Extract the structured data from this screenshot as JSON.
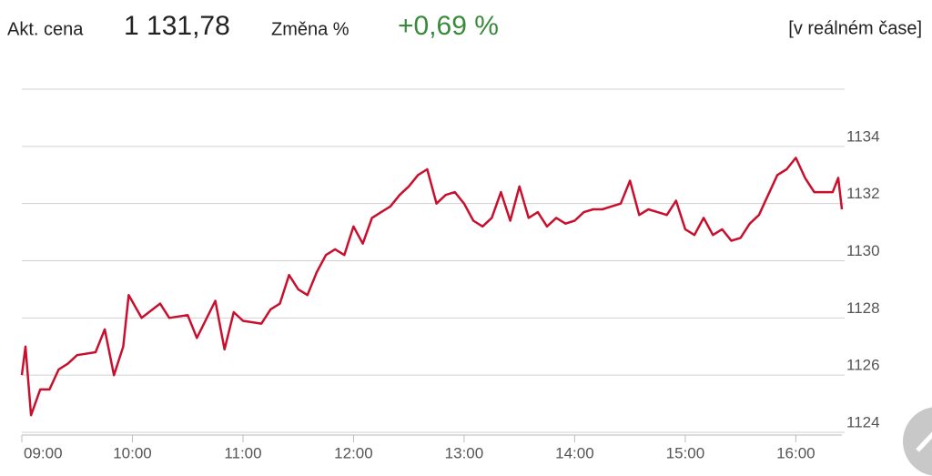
{
  "header": {
    "price_label": "Akt. cena",
    "price": "1 131,78",
    "change_label": "Změna %",
    "change": "+0,69 %",
    "realtime": "[v reálném čase]"
  },
  "chart_data": {
    "type": "line",
    "color": "#c8102e",
    "x": [
      "09:00",
      "09:02",
      "09:05",
      "09:10",
      "09:15",
      "09:20",
      "09:25",
      "09:30",
      "09:40",
      "09:45",
      "09:50",
      "09:55",
      "09:58",
      "10:05",
      "10:15",
      "10:20",
      "10:30",
      "10:35",
      "10:45",
      "10:50",
      "10:55",
      "11:00",
      "11:10",
      "11:15",
      "11:20",
      "11:25",
      "11:30",
      "11:35",
      "11:40",
      "11:45",
      "11:50",
      "11:55",
      "12:00",
      "12:05",
      "12:10",
      "12:15",
      "12:20",
      "12:25",
      "12:30",
      "12:35",
      "12:40",
      "12:45",
      "12:50",
      "12:55",
      "13:00",
      "13:05",
      "13:10",
      "13:15",
      "13:20",
      "13:25",
      "13:30",
      "13:35",
      "13:40",
      "13:45",
      "13:50",
      "13:55",
      "14:00",
      "14:05",
      "14:10",
      "14:15",
      "14:20",
      "14:25",
      "14:30",
      "14:35",
      "14:40",
      "14:45",
      "14:50",
      "14:55",
      "15:00",
      "15:05",
      "15:10",
      "15:15",
      "15:20",
      "15:25",
      "15:30",
      "15:35",
      "15:40",
      "15:45",
      "15:50",
      "15:55",
      "16:00",
      "16:05",
      "16:10",
      "16:15",
      "16:20",
      "16:23",
      "16:25"
    ],
    "values": [
      1126.0,
      1127.0,
      1124.6,
      1125.5,
      1125.5,
      1126.2,
      1126.4,
      1126.7,
      1126.8,
      1127.6,
      1126.0,
      1127.0,
      1128.8,
      1128.0,
      1128.5,
      1128.0,
      1128.1,
      1127.3,
      1128.6,
      1126.9,
      1128.2,
      1127.9,
      1127.8,
      1128.3,
      1128.5,
      1129.5,
      1129.0,
      1128.8,
      1129.6,
      1130.2,
      1130.4,
      1130.2,
      1131.2,
      1130.6,
      1131.5,
      1131.7,
      1131.9,
      1132.3,
      1132.6,
      1133.0,
      1133.2,
      1132.0,
      1132.3,
      1132.4,
      1132.0,
      1131.4,
      1131.2,
      1131.5,
      1132.4,
      1131.4,
      1132.6,
      1131.5,
      1131.7,
      1131.2,
      1131.5,
      1131.3,
      1131.4,
      1131.7,
      1131.8,
      1131.8,
      1131.9,
      1132.0,
      1132.8,
      1131.6,
      1131.8,
      1131.7,
      1131.6,
      1132.1,
      1131.1,
      1130.9,
      1131.5,
      1130.9,
      1131.1,
      1130.7,
      1130.8,
      1131.3,
      1131.6,
      1132.3,
      1133.0,
      1133.2,
      1133.6,
      1132.9,
      1132.4,
      1132.4,
      1132.4,
      1132.9,
      1131.8
    ],
    "xlim": [
      "09:00",
      "16:25"
    ],
    "xticks": [
      "09:00",
      "10:00",
      "11:00",
      "12:00",
      "13:00",
      "14:00",
      "15:00",
      "16:00"
    ],
    "ylim": [
      1124,
      1136
    ],
    "yticks": [
      1124,
      1126,
      1128,
      1130,
      1132,
      1134
    ],
    "grid": true
  }
}
